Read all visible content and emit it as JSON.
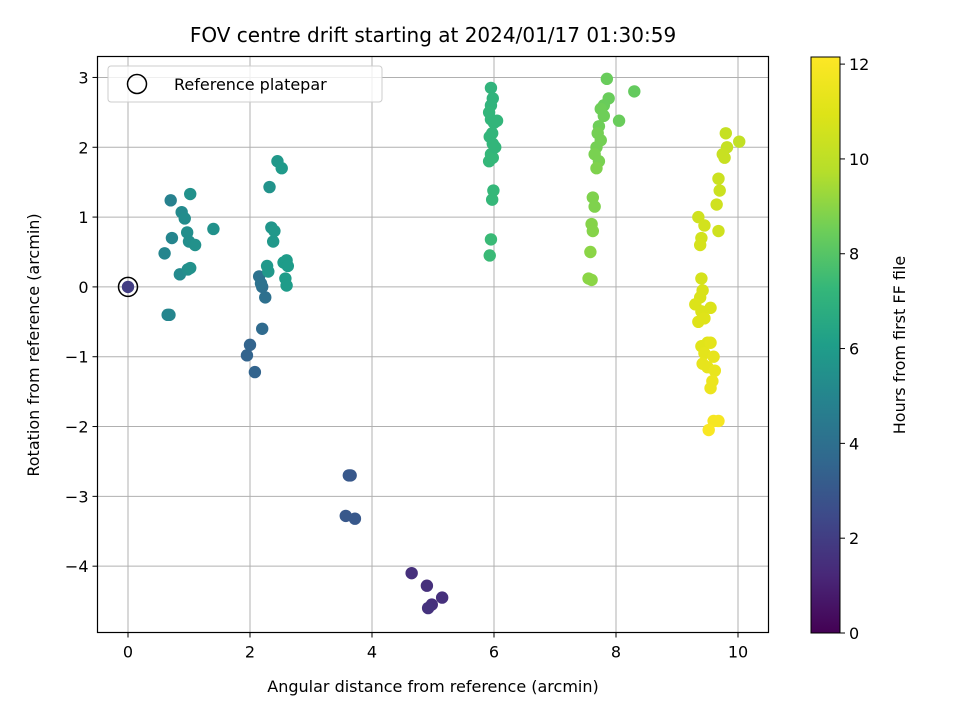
{
  "chart_data": {
    "type": "scatter",
    "title": "FOV centre drift starting at 2024/01/17 01:30:59",
    "xlabel": "Angular distance from reference (arcmin)",
    "ylabel": "Rotation from reference (arcmin)",
    "xlim": [
      -0.5,
      10.5
    ],
    "ylim": [
      -4.95,
      3.3
    ],
    "xticks": [
      0,
      2,
      4,
      6,
      8,
      10
    ],
    "xtick_labels": [
      "0",
      "2",
      "4",
      "6",
      "8",
      "10"
    ],
    "yticks": [
      3,
      2,
      1,
      0,
      -1,
      -2,
      -3,
      -4
    ],
    "ytick_labels": [
      "3",
      "2",
      "1",
      "0",
      "−1",
      "−2",
      "−3",
      "−4"
    ],
    "grid": true,
    "legend": {
      "placement": "upper-left",
      "label": "Reference platepar"
    },
    "reference_point": {
      "x": 0,
      "y": 0
    },
    "colormap": "viridis",
    "colorbar": {
      "label": "Hours from first FF file",
      "range": [
        0,
        12.15
      ],
      "ticks": [
        0,
        2,
        4,
        6,
        8,
        10,
        12
      ],
      "tick_labels": [
        "0",
        "2",
        "4",
        "6",
        "8",
        "10",
        "12"
      ]
    },
    "points": [
      {
        "x": 0.0,
        "y": 0.0,
        "c": 2.0
      },
      {
        "x": 4.65,
        "y": -4.1,
        "c": 1.5
      },
      {
        "x": 4.9,
        "y": -4.28,
        "c": 1.5
      },
      {
        "x": 5.15,
        "y": -4.45,
        "c": 1.5
      },
      {
        "x": 4.98,
        "y": -4.55,
        "c": 1.5
      },
      {
        "x": 4.92,
        "y": -4.6,
        "c": 1.6
      },
      {
        "x": 3.62,
        "y": -2.7,
        "c": 3.0
      },
      {
        "x": 3.65,
        "y": -2.7,
        "c": 3.0
      },
      {
        "x": 3.57,
        "y": -3.28,
        "c": 3.0
      },
      {
        "x": 3.72,
        "y": -3.32,
        "c": 3.0
      },
      {
        "x": 1.95,
        "y": -0.98,
        "c": 3.5
      },
      {
        "x": 2.0,
        "y": -0.83,
        "c": 3.5
      },
      {
        "x": 2.08,
        "y": -1.22,
        "c": 3.5
      },
      {
        "x": 2.2,
        "y": -0.6,
        "c": 3.8
      },
      {
        "x": 2.25,
        "y": -0.15,
        "c": 4.0
      },
      {
        "x": 2.2,
        "y": 0.0,
        "c": 4.0
      },
      {
        "x": 2.18,
        "y": 0.05,
        "c": 4.1
      },
      {
        "x": 2.15,
        "y": 0.15,
        "c": 4.1
      },
      {
        "x": 2.28,
        "y": 0.3,
        "c": 5.8
      },
      {
        "x": 2.3,
        "y": 0.22,
        "c": 5.8
      },
      {
        "x": 2.32,
        "y": 1.43,
        "c": 5.6
      },
      {
        "x": 2.35,
        "y": 0.85,
        "c": 5.7
      },
      {
        "x": 2.38,
        "y": 0.65,
        "c": 5.8
      },
      {
        "x": 2.4,
        "y": 0.8,
        "c": 5.8
      },
      {
        "x": 2.45,
        "y": 1.8,
        "c": 5.8
      },
      {
        "x": 2.52,
        "y": 1.7,
        "c": 5.9
      },
      {
        "x": 2.55,
        "y": 0.35,
        "c": 6.0
      },
      {
        "x": 2.58,
        "y": 0.12,
        "c": 6.0
      },
      {
        "x": 2.6,
        "y": 0.38,
        "c": 6.0
      },
      {
        "x": 2.62,
        "y": 0.3,
        "c": 6.0
      },
      {
        "x": 2.6,
        "y": 0.02,
        "c": 6.0
      },
      {
        "x": 0.6,
        "y": 0.48,
        "c": 5.0
      },
      {
        "x": 0.65,
        "y": -0.4,
        "c": 5.0
      },
      {
        "x": 0.68,
        "y": -0.4,
        "c": 5.0
      },
      {
        "x": 0.7,
        "y": 1.24,
        "c": 4.8
      },
      {
        "x": 0.72,
        "y": 0.7,
        "c": 5.0
      },
      {
        "x": 0.85,
        "y": 0.18,
        "c": 5.2
      },
      {
        "x": 0.88,
        "y": 1.07,
        "c": 5.2
      },
      {
        "x": 0.93,
        "y": 0.98,
        "c": 5.3
      },
      {
        "x": 0.97,
        "y": 0.78,
        "c": 5.4
      },
      {
        "x": 0.98,
        "y": 0.25,
        "c": 5.4
      },
      {
        "x": 1.0,
        "y": 0.65,
        "c": 5.4
      },
      {
        "x": 1.02,
        "y": 0.27,
        "c": 5.5
      },
      {
        "x": 1.02,
        "y": 1.33,
        "c": 5.5
      },
      {
        "x": 1.1,
        "y": 0.6,
        "c": 5.5
      },
      {
        "x": 1.4,
        "y": 0.83,
        "c": 5.5
      },
      {
        "x": 5.95,
        "y": 2.85,
        "c": 7.1
      },
      {
        "x": 5.98,
        "y": 2.7,
        "c": 7.1
      },
      {
        "x": 5.95,
        "y": 2.6,
        "c": 7.1
      },
      {
        "x": 5.92,
        "y": 2.5,
        "c": 7.2
      },
      {
        "x": 5.95,
        "y": 2.4,
        "c": 7.2
      },
      {
        "x": 6.0,
        "y": 2.35,
        "c": 7.2
      },
      {
        "x": 5.97,
        "y": 2.2,
        "c": 7.2
      },
      {
        "x": 5.93,
        "y": 2.15,
        "c": 7.2
      },
      {
        "x": 5.98,
        "y": 2.05,
        "c": 7.2
      },
      {
        "x": 5.95,
        "y": 1.9,
        "c": 7.3
      },
      {
        "x": 5.92,
        "y": 1.8,
        "c": 7.3
      },
      {
        "x": 5.98,
        "y": 1.85,
        "c": 7.3
      },
      {
        "x": 5.99,
        "y": 1.38,
        "c": 7.3
      },
      {
        "x": 5.97,
        "y": 1.25,
        "c": 7.3
      },
      {
        "x": 5.95,
        "y": 0.68,
        "c": 7.4
      },
      {
        "x": 5.93,
        "y": 0.45,
        "c": 7.4
      },
      {
        "x": 6.02,
        "y": 2.0,
        "c": 7.2
      },
      {
        "x": 6.05,
        "y": 2.38,
        "c": 7.2
      },
      {
        "x": 7.85,
        "y": 2.98,
        "c": 8.4
      },
      {
        "x": 8.3,
        "y": 2.8,
        "c": 8.3
      },
      {
        "x": 7.88,
        "y": 2.7,
        "c": 8.4
      },
      {
        "x": 7.8,
        "y": 2.6,
        "c": 8.4
      },
      {
        "x": 7.75,
        "y": 2.55,
        "c": 8.5
      },
      {
        "x": 7.8,
        "y": 2.45,
        "c": 8.5
      },
      {
        "x": 8.05,
        "y": 2.38,
        "c": 8.4
      },
      {
        "x": 7.72,
        "y": 2.3,
        "c": 8.5
      },
      {
        "x": 7.7,
        "y": 2.2,
        "c": 8.6
      },
      {
        "x": 7.75,
        "y": 2.1,
        "c": 8.6
      },
      {
        "x": 7.68,
        "y": 2.0,
        "c": 8.6
      },
      {
        "x": 7.65,
        "y": 1.9,
        "c": 8.7
      },
      {
        "x": 7.72,
        "y": 1.8,
        "c": 8.7
      },
      {
        "x": 7.68,
        "y": 1.7,
        "c": 8.8
      },
      {
        "x": 7.62,
        "y": 1.28,
        "c": 8.8
      },
      {
        "x": 7.65,
        "y": 1.15,
        "c": 8.8
      },
      {
        "x": 7.6,
        "y": 0.9,
        "c": 8.9
      },
      {
        "x": 7.62,
        "y": 0.8,
        "c": 8.9
      },
      {
        "x": 7.58,
        "y": 0.5,
        "c": 9.0
      },
      {
        "x": 7.55,
        "y": 0.12,
        "c": 9.0
      },
      {
        "x": 7.6,
        "y": 0.1,
        "c": 9.0
      },
      {
        "x": 9.8,
        "y": 2.2,
        "c": 10.2
      },
      {
        "x": 10.02,
        "y": 2.08,
        "c": 10.1
      },
      {
        "x": 9.82,
        "y": 2.0,
        "c": 10.2
      },
      {
        "x": 9.78,
        "y": 1.85,
        "c": 10.3
      },
      {
        "x": 9.75,
        "y": 1.9,
        "c": 10.3
      },
      {
        "x": 9.68,
        "y": 1.55,
        "c": 10.4
      },
      {
        "x": 9.7,
        "y": 1.38,
        "c": 10.4
      },
      {
        "x": 9.65,
        "y": 1.18,
        "c": 10.5
      },
      {
        "x": 9.68,
        "y": 0.8,
        "c": 10.5
      },
      {
        "x": 9.35,
        "y": 1.0,
        "c": 10.5
      },
      {
        "x": 9.45,
        "y": 0.88,
        "c": 10.6
      },
      {
        "x": 9.4,
        "y": 0.7,
        "c": 10.6
      },
      {
        "x": 9.38,
        "y": 0.6,
        "c": 10.7
      },
      {
        "x": 9.4,
        "y": 0.12,
        "c": 10.7
      },
      {
        "x": 9.42,
        "y": -0.05,
        "c": 10.8
      },
      {
        "x": 9.38,
        "y": -0.15,
        "c": 10.8
      },
      {
        "x": 9.3,
        "y": -0.25,
        "c": 10.9
      },
      {
        "x": 9.4,
        "y": -0.35,
        "c": 10.9
      },
      {
        "x": 9.55,
        "y": -0.3,
        "c": 10.9
      },
      {
        "x": 9.35,
        "y": -0.5,
        "c": 11.0
      },
      {
        "x": 9.45,
        "y": -0.45,
        "c": 11.0
      },
      {
        "x": 9.4,
        "y": -0.85,
        "c": 11.1
      },
      {
        "x": 9.5,
        "y": -0.8,
        "c": 11.1
      },
      {
        "x": 9.55,
        "y": -0.8,
        "c": 11.2
      },
      {
        "x": 9.45,
        "y": -0.95,
        "c": 11.2
      },
      {
        "x": 9.6,
        "y": -1.0,
        "c": 11.3
      },
      {
        "x": 9.42,
        "y": -1.1,
        "c": 11.3
      },
      {
        "x": 9.5,
        "y": -1.15,
        "c": 11.3
      },
      {
        "x": 9.62,
        "y": -1.2,
        "c": 11.4
      },
      {
        "x": 9.58,
        "y": -1.35,
        "c": 11.5
      },
      {
        "x": 9.55,
        "y": -1.45,
        "c": 11.5
      },
      {
        "x": 9.6,
        "y": -1.92,
        "c": 11.9
      },
      {
        "x": 9.68,
        "y": -1.92,
        "c": 11.9
      },
      {
        "x": 9.52,
        "y": -2.05,
        "c": 12.0
      }
    ]
  }
}
